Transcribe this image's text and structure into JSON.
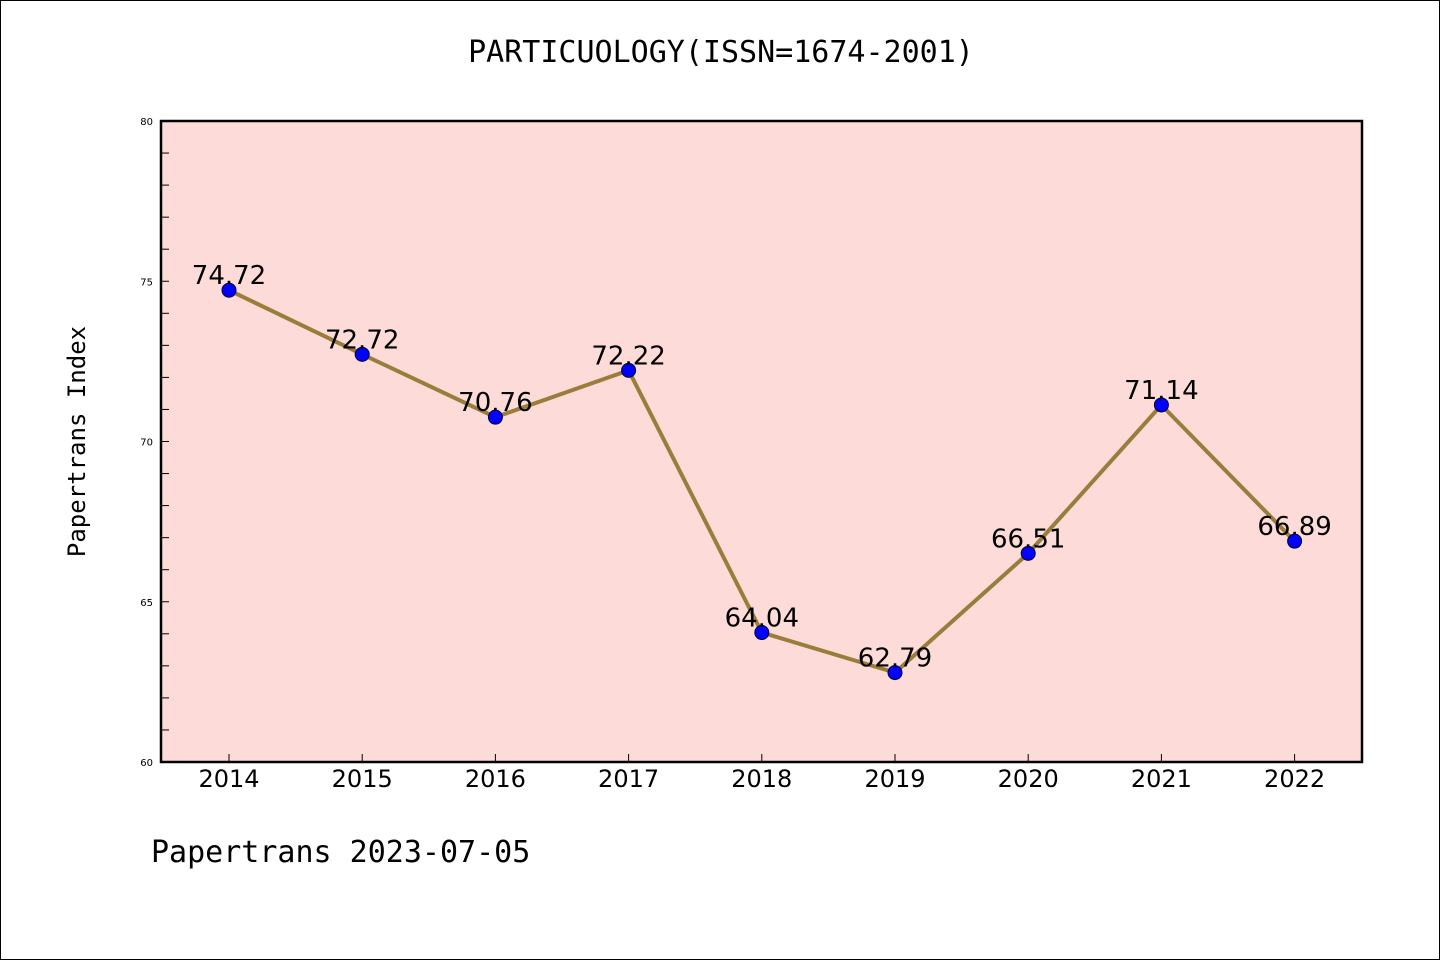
{
  "title": "PARTICUOLOGY(ISSN=1674-2001)",
  "footer": "Papertrans 2023-07-05",
  "colors": {
    "plot_background": "#fddbd8",
    "line": "#9a7d3a",
    "marker": "#0000ff"
  },
  "chart_data": {
    "type": "line",
    "title": "PARTICUOLOGY(ISSN=1674-2001)",
    "xlabel": "",
    "ylabel": "Papertrans Index",
    "categories": [
      "2014",
      "2015",
      "2016",
      "2017",
      "2018",
      "2019",
      "2020",
      "2021",
      "2022"
    ],
    "values": [
      74.72,
      72.72,
      70.76,
      72.22,
      64.04,
      62.79,
      66.51,
      71.14,
      66.89
    ],
    "data_labels": [
      "74.72",
      "72.72",
      "70.76",
      "72.22",
      "64.04",
      "62.79",
      "66.51",
      "71.14",
      "66.89"
    ],
    "ylim": [
      60,
      80
    ],
    "yticks": [
      "60",
      "65",
      "70",
      "75",
      "80"
    ],
    "grid": false,
    "legend": "none"
  }
}
